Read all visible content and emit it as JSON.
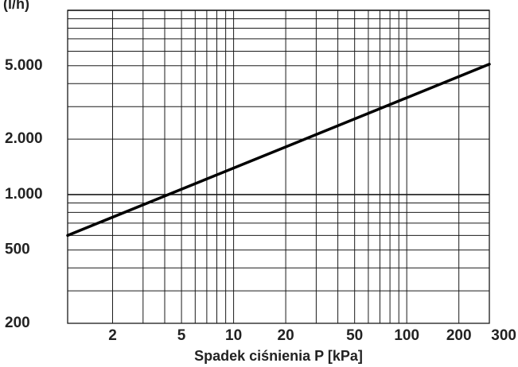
{
  "chart_data": {
    "type": "line",
    "title": "",
    "xlabel": "Spadek ciśnienia P [kPa]",
    "ylabel": "(l/h)",
    "xscale": "log",
    "yscale": "log",
    "xlim": [
      1.1,
      300
    ],
    "ylim": [
      200,
      10000
    ],
    "x_ticks": [
      {
        "value": 2,
        "label": "2"
      },
      {
        "value": 5,
        "label": "5"
      },
      {
        "value": 10,
        "label": "10"
      },
      {
        "value": 20,
        "label": "20"
      },
      {
        "value": 50,
        "label": "50"
      },
      {
        "value": 100,
        "label": "100"
      },
      {
        "value": 200,
        "label": "200"
      },
      {
        "value": 300,
        "label": "300"
      }
    ],
    "y_ticks": [
      {
        "value": 200,
        "label": "200"
      },
      {
        "value": 500,
        "label": "500"
      },
      {
        "value": 1000,
        "label": "1.000"
      },
      {
        "value": 2000,
        "label": "2.000"
      },
      {
        "value": 5000,
        "label": "5.000"
      }
    ],
    "x_grid": [
      2,
      3,
      4,
      5,
      6,
      7,
      8,
      9,
      10,
      20,
      30,
      40,
      50,
      60,
      70,
      80,
      90,
      100,
      200,
      300
    ],
    "y_grid": [
      300,
      400,
      500,
      600,
      700,
      800,
      900,
      1000,
      2000,
      3000,
      4000,
      5000,
      6000,
      7000,
      8000,
      9000,
      10000
    ],
    "y_grid_major": [
      1000,
      10000
    ],
    "grid": true,
    "series": [
      {
        "points": [
          [
            1.1,
            600
          ],
          [
            300,
            5100
          ]
        ],
        "color": "#000000"
      }
    ]
  }
}
